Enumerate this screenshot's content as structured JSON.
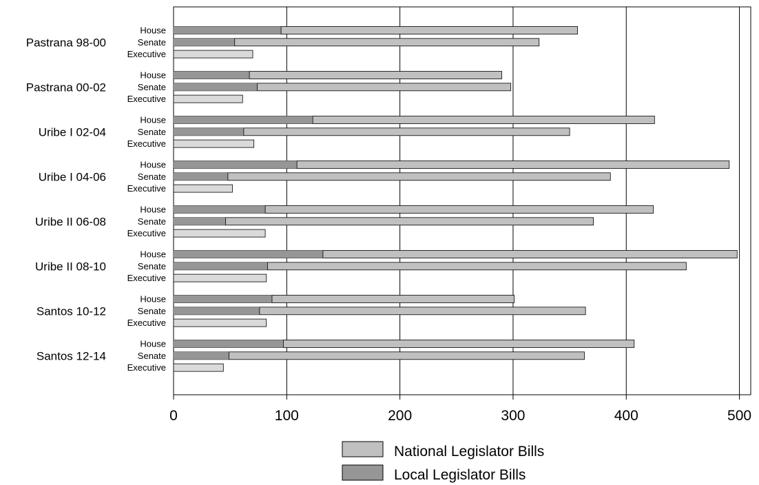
{
  "chart_data": {
    "type": "bar",
    "orientation": "horizontal",
    "stacked": true,
    "groups": [
      {
        "label": "Pastrana 98-00",
        "bars": [
          {
            "label": "House",
            "local": 95,
            "national": 357
          },
          {
            "label": "Senate",
            "local": 54,
            "national": 323
          },
          {
            "label": "Executive",
            "local": 0,
            "national": 70
          }
        ]
      },
      {
        "label": "Pastrana 00-02",
        "bars": [
          {
            "label": "House",
            "local": 67,
            "national": 290
          },
          {
            "label": "Senate",
            "local": 74,
            "national": 298
          },
          {
            "label": "Executive",
            "local": 0,
            "national": 61
          }
        ]
      },
      {
        "label": "Uribe I 02-04",
        "bars": [
          {
            "label": "House",
            "local": 123,
            "national": 425
          },
          {
            "label": "Senate",
            "local": 62,
            "national": 350
          },
          {
            "label": "Executive",
            "local": 0,
            "national": 71
          }
        ]
      },
      {
        "label": "Uribe I 04-06",
        "bars": [
          {
            "label": "House",
            "local": 109,
            "national": 491
          },
          {
            "label": "Senate",
            "local": 48,
            "national": 386
          },
          {
            "label": "Executive",
            "local": 0,
            "national": 52
          }
        ]
      },
      {
        "label": "Uribe II 06-08",
        "bars": [
          {
            "label": "House",
            "local": 81,
            "national": 424
          },
          {
            "label": "Senate",
            "local": 46,
            "national": 371
          },
          {
            "label": "Executive",
            "local": 0,
            "national": 81
          }
        ]
      },
      {
        "label": "Uribe II 08-10",
        "bars": [
          {
            "label": "House",
            "local": 132,
            "national": 498
          },
          {
            "label": "Senate",
            "local": 83,
            "national": 453
          },
          {
            "label": "Executive",
            "local": 0,
            "national": 82
          }
        ]
      },
      {
        "label": "Santos 10-12",
        "bars": [
          {
            "label": "House",
            "local": 87,
            "national": 301
          },
          {
            "label": "Senate",
            "local": 76,
            "national": 364
          },
          {
            "label": "Executive",
            "local": 0,
            "national": 82
          }
        ]
      },
      {
        "label": "Santos 12-14",
        "bars": [
          {
            "label": "House",
            "local": 97,
            "national": 407
          },
          {
            "label": "Senate",
            "local": 49,
            "national": 363
          },
          {
            "label": "Executive",
            "local": 0,
            "national": 44
          }
        ]
      }
    ],
    "series": [
      {
        "name": "National Legislator Bills",
        "color": "#c0c0c0",
        "key": "national"
      },
      {
        "name": "Local Legislator Bills",
        "color": "#969696",
        "key": "local"
      }
    ],
    "executive_color": "#dadada",
    "xlim": [
      0,
      510
    ],
    "xticks": [
      0,
      100,
      200,
      300,
      400,
      500
    ],
    "grid": true,
    "legend_position": "bottom",
    "xlabel": "",
    "ylabel": "",
    "title": ""
  }
}
